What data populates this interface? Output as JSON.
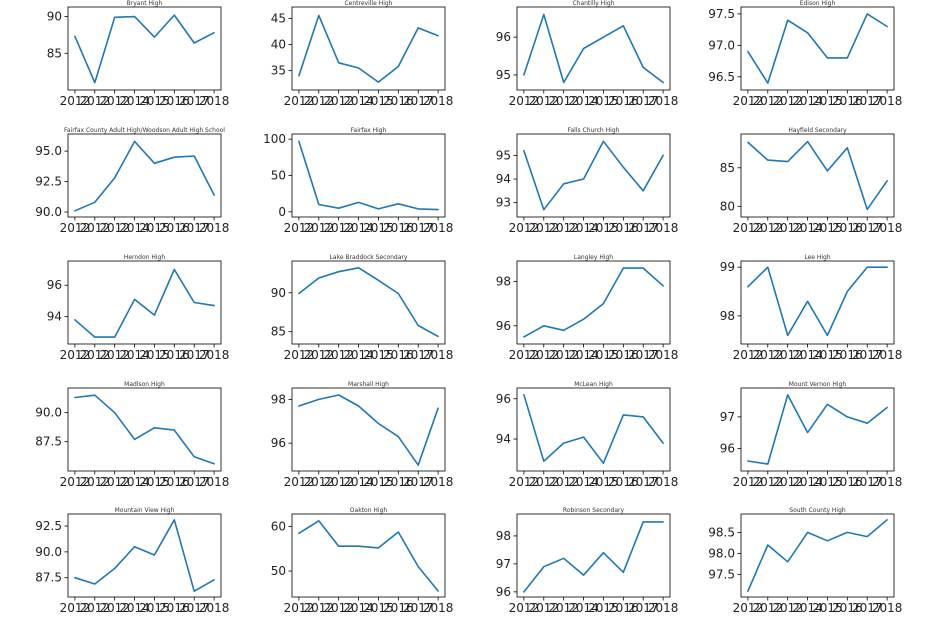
{
  "chart_data": [
    {
      "type": "line",
      "title": "Bryant High",
      "x": [
        "2012",
        "2012",
        "2012",
        "2014",
        "2015",
        "2016",
        "2017",
        "2018"
      ],
      "values": [
        87.3,
        81.0,
        89.9,
        90.0,
        87.2,
        90.2,
        86.4,
        87.8
      ],
      "yticks": [
        "85",
        "90"
      ],
      "ylim": [
        80.5,
        90.8
      ]
    },
    {
      "type": "line",
      "title": "Centreville High",
      "x": [
        "2012",
        "2012",
        "2012",
        "2014",
        "2015",
        "2016",
        "2017",
        "2018"
      ],
      "values": [
        34.0,
        45.6,
        36.5,
        35.5,
        32.8,
        35.8,
        43.2,
        41.7
      ],
      "yticks": [
        "35",
        "40",
        "45"
      ],
      "ylim": [
        32.0,
        46.5
      ]
    },
    {
      "type": "line",
      "title": "Chantilly High",
      "x": [
        "2012",
        "2012",
        "2012",
        "2014",
        "2015",
        "2016",
        "2017",
        "2018"
      ],
      "values": [
        95.0,
        96.6,
        94.8,
        95.7,
        96.0,
        96.3,
        95.2,
        94.8
      ],
      "yticks": [
        "95",
        "96"
      ],
      "ylim": [
        94.7,
        96.7
      ]
    },
    {
      "type": "line",
      "title": "Edison High",
      "x": [
        "2012",
        "2012",
        "2012",
        "2014",
        "2015",
        "2016",
        "2017",
        "2018"
      ],
      "values": [
        96.9,
        96.4,
        97.4,
        97.2,
        96.8,
        96.8,
        97.5,
        97.3
      ],
      "yticks": [
        "96.5",
        "97.0",
        "97.5"
      ],
      "ylim": [
        96.35,
        97.55
      ]
    },
    {
      "type": "line",
      "title": "Fairfax County Adult High/Woodson Adult High School",
      "x": [
        "2012",
        "2012",
        "2012",
        "2014",
        "2015",
        "2016",
        "2017",
        "2018"
      ],
      "values": [
        90.1,
        90.8,
        92.8,
        95.8,
        94.0,
        94.5,
        94.6,
        91.4
      ],
      "yticks": [
        "90.0",
        "92.5",
        "95.0"
      ],
      "ylim": [
        89.9,
        96.1
      ]
    },
    {
      "type": "line",
      "title": "Fairfax High",
      "x": [
        "2012",
        "2012",
        "2012",
        "2014",
        "2015",
        "2016",
        "2017",
        "2018"
      ],
      "values": [
        97.0,
        10.0,
        5.0,
        13.0,
        4.0,
        11.0,
        4.0,
        3.0
      ],
      "yticks": [
        "0",
        "50",
        "100"
      ],
      "ylim": [
        -2.0,
        102.0
      ]
    },
    {
      "type": "line",
      "title": "Falls Church High",
      "x": [
        "2012",
        "2012",
        "2012",
        "2014",
        "2015",
        "2016",
        "2017",
        "2018"
      ],
      "values": [
        95.2,
        92.7,
        93.8,
        94.0,
        95.6,
        94.5,
        93.5,
        95.0
      ],
      "yticks": [
        "93",
        "94",
        "95"
      ],
      "ylim": [
        92.55,
        95.75
      ]
    },
    {
      "type": "line",
      "title": "Hayfield Secondary",
      "x": [
        "2012",
        "2012",
        "2012",
        "2014",
        "2015",
        "2016",
        "2017",
        "2018"
      ],
      "values": [
        88.3,
        86.0,
        85.8,
        88.4,
        84.6,
        87.6,
        79.6,
        83.3
      ],
      "yticks": [
        "80",
        "85"
      ],
      "ylim": [
        79.1,
        88.9
      ]
    },
    {
      "type": "line",
      "title": "Herndon High",
      "x": [
        "2012",
        "2012",
        "2012",
        "2014",
        "2015",
        "2016",
        "2017",
        "2018"
      ],
      "values": [
        93.8,
        92.7,
        92.7,
        95.1,
        94.1,
        97.0,
        94.9,
        94.7
      ],
      "yticks": [
        "94",
        "96"
      ],
      "ylim": [
        92.5,
        97.3
      ]
    },
    {
      "type": "line",
      "title": "Lake Braddock Secondary",
      "x": [
        "2012",
        "2012",
        "2012",
        "2014",
        "2015",
        "2016",
        "2017",
        "2018"
      ],
      "values": [
        89.9,
        91.9,
        92.7,
        93.2,
        91.6,
        89.9,
        85.8,
        84.4
      ],
      "yticks": [
        "85",
        "90"
      ],
      "ylim": [
        83.9,
        93.6
      ]
    },
    {
      "type": "line",
      "title": "Langley High",
      "x": [
        "2012",
        "2012",
        "2012",
        "2014",
        "2015",
        "2016",
        "2017",
        "2018"
      ],
      "values": [
        95.5,
        96.0,
        95.8,
        96.3,
        97.0,
        98.6,
        98.6,
        97.8
      ],
      "yticks": [
        "96",
        "98"
      ],
      "ylim": [
        95.35,
        98.75
      ]
    },
    {
      "type": "line",
      "title": "Lee High",
      "x": [
        "2012",
        "2012",
        "2012",
        "2014",
        "2015",
        "2016",
        "2017",
        "2018"
      ],
      "values": [
        98.6,
        99.0,
        97.6,
        98.3,
        97.6,
        98.5,
        99.0,
        99.0
      ],
      "yticks": [
        "98",
        "99"
      ],
      "ylim": [
        97.5,
        99.05
      ]
    },
    {
      "type": "line",
      "title": "Madison High",
      "x": [
        "2012",
        "2012",
        "2012",
        "2014",
        "2015",
        "2016",
        "2017",
        "2018"
      ],
      "values": [
        91.3,
        91.5,
        90.0,
        87.7,
        88.7,
        88.5,
        86.2,
        85.6
      ],
      "yticks": [
        "87.5",
        "90.0"
      ],
      "ylim": [
        85.3,
        91.8
      ]
    },
    {
      "type": "line",
      "title": "Marshall High",
      "x": [
        "2012",
        "2012",
        "2012",
        "2014",
        "2015",
        "2016",
        "2017",
        "2018"
      ],
      "values": [
        97.7,
        98.0,
        98.2,
        97.7,
        96.9,
        96.3,
        95.0,
        97.6
      ],
      "yticks": [
        "96",
        "98"
      ],
      "ylim": [
        94.9,
        98.35
      ]
    },
    {
      "type": "line",
      "title": "McLean High",
      "x": [
        "2012",
        "2012",
        "2012",
        "2014",
        "2015",
        "2016",
        "2017",
        "2018"
      ],
      "values": [
        96.2,
        92.9,
        93.8,
        94.1,
        92.8,
        95.2,
        95.1,
        93.8
      ],
      "yticks": [
        "94",
        "96"
      ],
      "ylim": [
        92.6,
        96.35
      ]
    },
    {
      "type": "line",
      "title": "Mount Vernon High",
      "x": [
        "2012",
        "2012",
        "2012",
        "2014",
        "2015",
        "2016",
        "2017",
        "2018"
      ],
      "values": [
        95.6,
        95.5,
        97.7,
        96.5,
        97.4,
        97.0,
        96.8,
        97.3
      ],
      "yticks": [
        "96",
        "97"
      ],
      "ylim": [
        95.4,
        97.8
      ]
    },
    {
      "type": "line",
      "title": "Mountain View High",
      "x": [
        "2012",
        "2012",
        "2012",
        "2014",
        "2015",
        "2016",
        "2017",
        "2018"
      ],
      "values": [
        87.5,
        86.9,
        88.4,
        90.5,
        89.7,
        93.1,
        86.2,
        87.3
      ],
      "yticks": [
        "87.5",
        "90.0",
        "92.5"
      ],
      "ylim": [
        86.0,
        93.3
      ]
    },
    {
      "type": "line",
      "title": "Oakton High",
      "x": [
        "2012",
        "2012",
        "2012",
        "2014",
        "2015",
        "2016",
        "2017",
        "2018"
      ],
      "values": [
        58.5,
        61.3,
        55.6,
        55.6,
        55.2,
        58.8,
        51.0,
        45.5
      ],
      "yticks": [
        "50",
        "60"
      ],
      "ylim": [
        45.0,
        62.0
      ]
    },
    {
      "type": "line",
      "title": "Robinson Secondary",
      "x": [
        "2012",
        "2012",
        "2012",
        "2014",
        "2015",
        "2016",
        "2017",
        "2018"
      ],
      "values": [
        96.0,
        96.9,
        97.2,
        96.6,
        97.4,
        96.7,
        98.5,
        98.5
      ],
      "yticks": [
        "96",
        "97",
        "98"
      ],
      "ylim": [
        95.95,
        98.65
      ]
    },
    {
      "type": "line",
      "title": "South County High",
      "x": [
        "2012",
        "2012",
        "2012",
        "2014",
        "2015",
        "2016",
        "2017",
        "2018"
      ],
      "values": [
        97.1,
        98.2,
        97.8,
        98.5,
        98.3,
        98.5,
        98.4,
        98.8
      ],
      "yticks": [
        "97.5",
        "98.0",
        "98.5"
      ],
      "ylim": [
        97.05,
        98.85
      ]
    }
  ],
  "colors": {
    "line": "#1f77b4"
  }
}
